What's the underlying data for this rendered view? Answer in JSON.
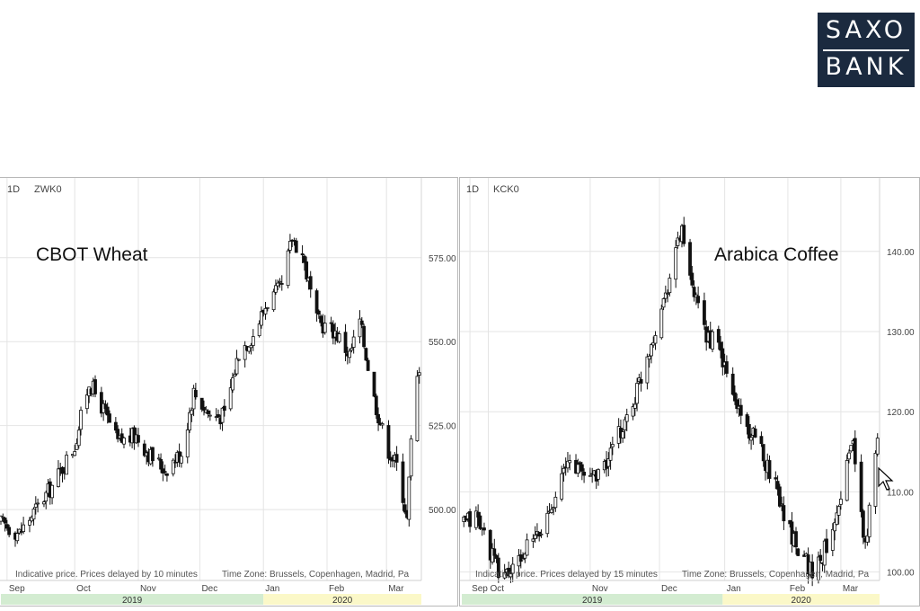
{
  "logo": {
    "line1": "SAXO",
    "line2": "BANK"
  },
  "chart_data": [
    {
      "type": "candlestick",
      "timeframe": "1D",
      "symbol": "ZWK0",
      "title": "CBOT Wheat",
      "note": "Indicative price. Prices delayed by 10 minutes",
      "timezone": "Time Zone: Brussels, Copenhagen, Madrid, Pa",
      "yticks": [
        "500.00",
        "525.00",
        "550.00",
        "575.00"
      ],
      "ylim": [
        488,
        595
      ],
      "xlim": [
        "2019-08-26",
        "2020-03-18"
      ],
      "month_labels": [
        {
          "label": "Sep",
          "date": "2019-08-29"
        },
        {
          "label": "Oct",
          "date": "2019-10-01"
        },
        {
          "label": "Nov",
          "date": "2019-11-01"
        },
        {
          "label": "Dec",
          "date": "2019-12-01"
        },
        {
          "label": "Jan",
          "date": "2020-01-01"
        },
        {
          "label": "Feb",
          "date": "2020-02-01"
        },
        {
          "label": "Mar",
          "date": "2020-03-01"
        }
      ],
      "years": [
        {
          "label": "2019",
          "from": "2019-08-26",
          "to": "2020-01-01",
          "color": "#d3ecd1"
        },
        {
          "label": "2020",
          "from": "2020-01-01",
          "to": "2020-03-18",
          "color": "#fbf8c8"
        }
      ],
      "series": [
        {
          "date": "2019-08-26",
          "close": 496
        },
        {
          "date": "2019-09-04",
          "close": 493
        },
        {
          "date": "2019-09-12",
          "close": 500
        },
        {
          "date": "2019-09-20",
          "close": 507
        },
        {
          "date": "2019-10-01",
          "close": 519
        },
        {
          "date": "2019-10-08",
          "close": 538
        },
        {
          "date": "2019-10-14",
          "close": 531
        },
        {
          "date": "2019-10-22",
          "close": 520
        },
        {
          "date": "2019-10-31",
          "close": 522
        },
        {
          "date": "2019-11-07",
          "close": 516
        },
        {
          "date": "2019-11-14",
          "close": 512
        },
        {
          "date": "2019-11-22",
          "close": 517
        },
        {
          "date": "2019-11-28",
          "close": 535
        },
        {
          "date": "2019-12-06",
          "close": 528
        },
        {
          "date": "2019-12-13",
          "close": 528
        },
        {
          "date": "2019-12-20",
          "close": 547
        },
        {
          "date": "2019-12-27",
          "close": 552
        },
        {
          "date": "2020-01-03",
          "close": 562
        },
        {
          "date": "2020-01-10",
          "close": 566
        },
        {
          "date": "2020-01-15",
          "close": 581
        },
        {
          "date": "2020-01-20",
          "close": 576
        },
        {
          "date": "2020-01-27",
          "close": 556
        },
        {
          "date": "2020-02-05",
          "close": 553
        },
        {
          "date": "2020-02-12",
          "close": 546
        },
        {
          "date": "2020-02-17",
          "close": 556
        },
        {
          "date": "2020-02-24",
          "close": 533
        },
        {
          "date": "2020-03-01",
          "close": 519
        },
        {
          "date": "2020-03-07",
          "close": 512
        },
        {
          "date": "2020-03-11",
          "close": 497
        },
        {
          "date": "2020-03-14",
          "close": 531
        },
        {
          "date": "2020-03-17",
          "close": 543
        }
      ]
    },
    {
      "type": "candlestick",
      "timeframe": "1D",
      "symbol": "KCK0",
      "title": "Arabica Coffee",
      "note": "Indicative price. Prices delayed by 15 minutes",
      "timezone": "Time Zone: Brussels, Copenhagen, Madrid, Pa",
      "yticks": [
        "100.00",
        "110.00",
        "120.00",
        "130.00",
        "140.00"
      ],
      "ylim": [
        97.6,
        147.6
      ],
      "xlim": [
        "2019-08-26",
        "2020-03-18"
      ],
      "month_labels": [
        {
          "label": "Sep",
          "date": "2019-08-30"
        },
        {
          "label": "Oct",
          "date": "2019-09-08"
        },
        {
          "label": "Nov",
          "date": "2019-10-28"
        },
        {
          "label": "Dec",
          "date": "2019-12-01"
        },
        {
          "label": "Jan",
          "date": "2020-01-02"
        },
        {
          "label": "Feb",
          "date": "2020-02-02"
        },
        {
          "label": "Mar",
          "date": "2020-02-28"
        }
      ],
      "years": [
        {
          "label": "2019",
          "from": "2019-08-26",
          "to": "2020-01-01",
          "color": "#d3ecd1"
        },
        {
          "label": "2020",
          "from": "2020-01-01",
          "to": "2020-03-18",
          "color": "#fbf8c8"
        }
      ],
      "series": [
        {
          "date": "2019-08-27",
          "close": 106
        },
        {
          "date": "2019-09-02",
          "close": 107
        },
        {
          "date": "2019-09-07",
          "close": 104
        },
        {
          "date": "2019-09-13",
          "close": 100
        },
        {
          "date": "2019-09-20",
          "close": 100
        },
        {
          "date": "2019-09-27",
          "close": 103
        },
        {
          "date": "2019-10-04",
          "close": 105
        },
        {
          "date": "2019-10-11",
          "close": 110
        },
        {
          "date": "2019-10-18",
          "close": 114
        },
        {
          "date": "2019-10-26",
          "close": 112
        },
        {
          "date": "2019-11-04",
          "close": 113
        },
        {
          "date": "2019-11-11",
          "close": 117
        },
        {
          "date": "2019-11-18",
          "close": 121
        },
        {
          "date": "2019-11-25",
          "close": 127
        },
        {
          "date": "2019-12-02",
          "close": 133
        },
        {
          "date": "2019-12-09",
          "close": 140
        },
        {
          "date": "2019-12-12",
          "close": 143
        },
        {
          "date": "2019-12-16",
          "close": 136
        },
        {
          "date": "2019-12-23",
          "close": 130
        },
        {
          "date": "2019-12-30",
          "close": 128
        },
        {
          "date": "2020-01-06",
          "close": 122
        },
        {
          "date": "2020-01-13",
          "close": 118
        },
        {
          "date": "2020-01-20",
          "close": 115
        },
        {
          "date": "2020-01-27",
          "close": 111
        },
        {
          "date": "2020-02-03",
          "close": 105
        },
        {
          "date": "2020-02-10",
          "close": 102
        },
        {
          "date": "2020-02-14",
          "close": 100
        },
        {
          "date": "2020-02-19",
          "close": 102
        },
        {
          "date": "2020-02-24",
          "close": 106
        },
        {
          "date": "2020-03-01",
          "close": 112
        },
        {
          "date": "2020-03-05",
          "close": 117
        },
        {
          "date": "2020-03-08",
          "close": 108
        },
        {
          "date": "2020-03-11",
          "close": 103
        },
        {
          "date": "2020-03-14",
          "close": 110
        },
        {
          "date": "2020-03-17",
          "close": 116
        }
      ]
    }
  ]
}
